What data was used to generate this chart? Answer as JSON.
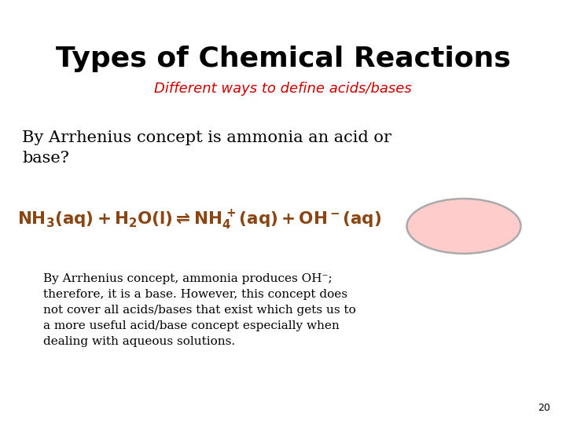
{
  "title": "Types of Chemical Reactions",
  "subtitle": "Different ways to define acids/bases",
  "title_color": "#000000",
  "subtitle_color": "#cc0000",
  "background_color": "#ffffff",
  "question_text": "By Arrhenius concept is ammonia an acid or\nbase?",
  "question_color": "#000000",
  "equation_color": "#8B4513",
  "circle_fill": "#ffcccc",
  "circle_edge": "#aaaaaa",
  "body_text": "By Arrhenius concept, ammonia produces OH⁻;\ntherefore, it is a base. However, this concept does\nnot cover all acids/bases that exist which gets us to\na more useful acid/base concept especially when\ndealing with aqueous solutions.",
  "body_color": "#000000",
  "page_number": "20"
}
